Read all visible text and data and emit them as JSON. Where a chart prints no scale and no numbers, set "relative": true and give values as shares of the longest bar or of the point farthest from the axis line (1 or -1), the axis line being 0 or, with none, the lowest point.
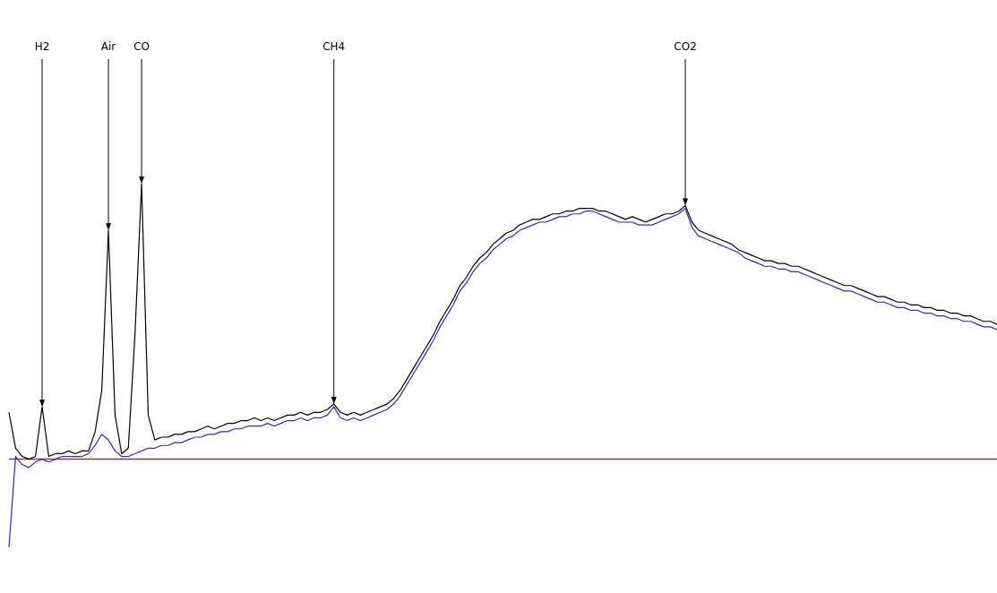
{
  "chart_data": {
    "type": "line",
    "relative": true,
    "tick_labels": false,
    "marker": "none",
    "line_style": "solid",
    "categories": [
      null,
      null,
      null,
      null,
      null,
      null,
      null,
      null,
      null,
      null,
      null,
      null,
      null,
      null,
      null,
      null,
      null,
      null,
      null,
      null,
      null,
      null,
      null,
      null,
      null,
      null,
      null,
      null,
      null,
      null,
      null,
      null,
      null,
      null,
      null,
      null,
      null,
      null,
      null,
      null,
      null,
      null,
      null,
      null,
      null,
      null,
      null,
      null,
      null,
      null,
      null,
      null,
      null,
      null,
      null,
      null,
      null,
      null,
      null,
      null,
      null,
      null,
      null,
      null,
      null,
      null,
      null,
      null,
      null,
      null,
      null,
      null,
      null,
      null,
      null,
      null,
      null,
      null,
      null,
      null,
      null,
      null,
      null,
      null,
      null,
      null,
      null,
      null,
      null,
      null,
      null,
      null,
      null,
      null,
      null,
      null,
      null,
      null,
      null,
      null,
      null,
      null,
      null,
      null,
      null,
      null,
      null,
      null,
      null,
      null,
      null,
      null,
      null,
      null,
      null,
      null,
      null,
      null,
      null,
      null,
      null,
      null,
      null,
      null,
      null,
      null,
      null,
      null,
      null,
      null,
      null,
      null,
      null,
      null,
      null,
      null,
      null,
      null,
      null,
      null,
      null,
      null,
      null,
      null,
      null,
      null,
      null,
      null,
      null,
      null
    ],
    "series": [
      {
        "color": "#000000",
        "values": [
          0.17,
          0.04,
          0.01,
          0.0,
          0.01,
          0.19,
          0.01,
          0.02,
          0.02,
          0.03,
          0.02,
          0.03,
          0.03,
          0.1,
          0.25,
          0.83,
          0.16,
          0.02,
          0.04,
          0.45,
          1.0,
          0.16,
          0.07,
          0.08,
          0.08,
          0.09,
          0.09,
          0.1,
          0.1,
          0.11,
          0.12,
          0.11,
          0.12,
          0.13,
          0.13,
          0.14,
          0.14,
          0.15,
          0.14,
          0.15,
          0.14,
          0.15,
          0.16,
          0.16,
          0.17,
          0.16,
          0.17,
          0.17,
          0.18,
          0.2,
          0.17,
          0.16,
          0.17,
          0.16,
          0.17,
          0.18,
          0.19,
          0.2,
          0.22,
          0.25,
          0.29,
          0.33,
          0.37,
          0.41,
          0.45,
          0.5,
          0.54,
          0.58,
          0.63,
          0.66,
          0.7,
          0.73,
          0.75,
          0.78,
          0.8,
          0.82,
          0.83,
          0.85,
          0.86,
          0.87,
          0.87,
          0.88,
          0.89,
          0.89,
          0.9,
          0.9,
          0.91,
          0.91,
          0.91,
          0.9,
          0.9,
          0.89,
          0.88,
          0.87,
          0.88,
          0.87,
          0.86,
          0.87,
          0.88,
          0.89,
          0.89,
          0.9,
          0.92,
          0.86,
          0.83,
          0.82,
          0.81,
          0.8,
          0.79,
          0.78,
          0.76,
          0.75,
          0.74,
          0.73,
          0.72,
          0.72,
          0.71,
          0.71,
          0.7,
          0.7,
          0.69,
          0.68,
          0.67,
          0.66,
          0.65,
          0.64,
          0.63,
          0.63,
          0.62,
          0.61,
          0.6,
          0.59,
          0.59,
          0.58,
          0.57,
          0.57,
          0.56,
          0.56,
          0.55,
          0.55,
          0.54,
          0.54,
          0.53,
          0.53,
          0.52,
          0.52,
          0.51,
          0.5,
          0.5,
          0.49
        ]
      },
      {
        "color": "#2a2ad0",
        "values": [
          -0.32,
          0.01,
          -0.02,
          -0.03,
          -0.01,
          0.0,
          -0.01,
          0.0,
          0.01,
          0.01,
          0.01,
          0.01,
          0.02,
          0.05,
          0.09,
          0.07,
          0.03,
          0.01,
          0.01,
          0.02,
          0.03,
          0.04,
          0.04,
          0.05,
          0.05,
          0.06,
          0.06,
          0.07,
          0.08,
          0.08,
          0.09,
          0.09,
          0.1,
          0.1,
          0.11,
          0.11,
          0.12,
          0.12,
          0.12,
          0.13,
          0.12,
          0.13,
          0.14,
          0.14,
          0.15,
          0.14,
          0.15,
          0.15,
          0.16,
          0.19,
          0.15,
          0.14,
          0.15,
          0.14,
          0.15,
          0.16,
          0.17,
          0.18,
          0.2,
          0.23,
          0.27,
          0.31,
          0.35,
          0.39,
          0.43,
          0.48,
          0.52,
          0.56,
          0.61,
          0.64,
          0.68,
          0.71,
          0.73,
          0.76,
          0.78,
          0.8,
          0.81,
          0.83,
          0.84,
          0.85,
          0.86,
          0.86,
          0.87,
          0.88,
          0.88,
          0.89,
          0.89,
          0.9,
          0.9,
          0.89,
          0.88,
          0.87,
          0.86,
          0.86,
          0.86,
          0.85,
          0.85,
          0.85,
          0.86,
          0.87,
          0.88,
          0.89,
          0.91,
          0.84,
          0.81,
          0.8,
          0.79,
          0.78,
          0.77,
          0.76,
          0.75,
          0.73,
          0.72,
          0.71,
          0.7,
          0.7,
          0.69,
          0.69,
          0.68,
          0.68,
          0.67,
          0.66,
          0.65,
          0.64,
          0.63,
          0.62,
          0.61,
          0.61,
          0.6,
          0.59,
          0.58,
          0.57,
          0.57,
          0.56,
          0.55,
          0.55,
          0.54,
          0.54,
          0.53,
          0.53,
          0.52,
          0.52,
          0.51,
          0.51,
          0.5,
          0.5,
          0.49,
          0.48,
          0.48,
          0.47
        ]
      }
    ],
    "ref_lines": [
      {
        "axis": "y",
        "value": 0,
        "color": "#8b3a2a"
      }
    ],
    "annotations": [
      "H2",
      "Air",
      "CO",
      "CH4",
      "CO2"
    ]
  }
}
